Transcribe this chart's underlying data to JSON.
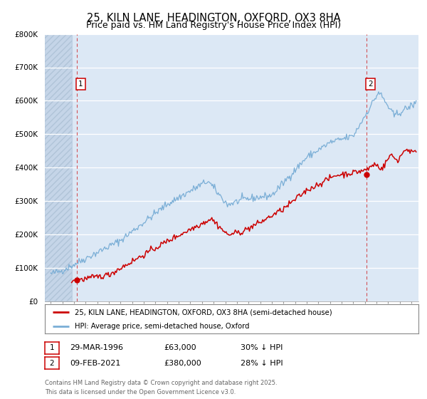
{
  "title": "25, KILN LANE, HEADINGTON, OXFORD, OX3 8HA",
  "subtitle": "Price paid vs. HM Land Registry's House Price Index (HPI)",
  "ylim": [
    0,
    800000
  ],
  "yticks": [
    0,
    100000,
    200000,
    300000,
    400000,
    500000,
    600000,
    700000,
    800000
  ],
  "ytick_labels": [
    "£0",
    "£100K",
    "£200K",
    "£300K",
    "£400K",
    "£500K",
    "£600K",
    "£700K",
    "£800K"
  ],
  "xlim_start": 1993.5,
  "xlim_end": 2025.6,
  "hpi_start_year": 1994.0,
  "price_start_year": 1995.8,
  "sale1_date": 1996.24,
  "sale1_price": 63000,
  "sale2_date": 2021.11,
  "sale2_price": 380000,
  "hpi_color": "#7aaed6",
  "price_color": "#cc0000",
  "vline_color": "#cc0000",
  "plot_bg_color": "#dce8f5",
  "hatch_color": "#c5d5e8",
  "grid_color": "#ffffff",
  "legend1_text": "25, KILN LANE, HEADINGTON, OXFORD, OX3 8HA (semi-detached house)",
  "legend2_text": "HPI: Average price, semi-detached house, Oxford",
  "table_row1": [
    "1",
    "29-MAR-1996",
    "£63,000",
    "30% ↓ HPI"
  ],
  "table_row2": [
    "2",
    "09-FEB-2021",
    "£380,000",
    "28% ↓ HPI"
  ],
  "footnote": "Contains HM Land Registry data © Crown copyright and database right 2025.\nThis data is licensed under the Open Government Licence v3.0.",
  "title_fontsize": 10.5,
  "subtitle_fontsize": 9,
  "tick_fontsize": 7.5,
  "label1_yval": 650000,
  "label2_yval": 650000
}
